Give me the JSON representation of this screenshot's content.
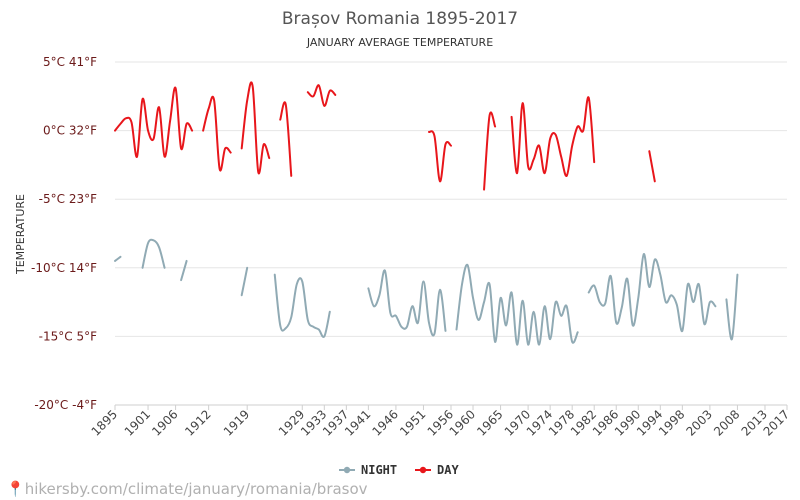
{
  "chart_data": {
    "type": "line",
    "title": "Brașov Romania 1895-2017",
    "subtitle": "JANUARY AVERAGE TEMPERATURE",
    "ylabel": "TEMPERATURE",
    "ylim": [
      -20,
      5
    ],
    "yticks": [
      {
        "value": 5,
        "label": "5°C 41°F"
      },
      {
        "value": 0,
        "label": "0°C 32°F"
      },
      {
        "value": -5,
        "label": "-5°C 23°F"
      },
      {
        "value": -10,
        "label": "-10°C 14°F"
      },
      {
        "value": -15,
        "label": "-15°C 5°F"
      },
      {
        "value": -20,
        "label": "-20°C -4°F"
      }
    ],
    "xlim": [
      1895,
      2017
    ],
    "xticks": [
      1895,
      1901,
      1906,
      1912,
      1919,
      1929,
      1933,
      1937,
      1941,
      1946,
      1951,
      1956,
      1960,
      1965,
      1970,
      1974,
      1978,
      1982,
      1986,
      1990,
      1994,
      1998,
      2003,
      2008,
      2013,
      2017
    ],
    "grid": true,
    "legend_position": "bottom",
    "series": [
      {
        "name": "NIGHT",
        "color": "#90aab4",
        "segments": [
          [
            [
              1895,
              -9.5
            ],
            [
              1896,
              -9.2
            ]
          ],
          [
            [
              1900,
              -10.0
            ],
            [
              1901,
              -8.2
            ],
            [
              1902,
              -8.0
            ],
            [
              1903,
              -8.5
            ],
            [
              1904,
              -10.0
            ]
          ],
          [
            [
              1907,
              -10.9
            ],
            [
              1908,
              -9.5
            ]
          ],
          [
            [
              1918,
              -12.0
            ],
            [
              1919,
              -10.0
            ]
          ],
          [
            [
              1924,
              -10.5
            ],
            [
              1925,
              -14.2
            ],
            [
              1926,
              -14.4
            ],
            [
              1927,
              -13.6
            ],
            [
              1928,
              -11.2
            ],
            [
              1929,
              -11.0
            ],
            [
              1930,
              -13.8
            ],
            [
              1931,
              -14.3
            ],
            [
              1932,
              -14.5
            ],
            [
              1933,
              -15.0
            ],
            [
              1934,
              -13.2
            ]
          ],
          [
            [
              1941,
              -11.5
            ],
            [
              1942,
              -12.8
            ],
            [
              1943,
              -12.0
            ],
            [
              1944,
              -10.2
            ],
            [
              1945,
              -13.3
            ],
            [
              1946,
              -13.5
            ],
            [
              1947,
              -14.3
            ],
            [
              1948,
              -14.3
            ],
            [
              1949,
              -12.8
            ],
            [
              1950,
              -14.0
            ],
            [
              1951,
              -11.0
            ],
            [
              1952,
              -14.0
            ],
            [
              1953,
              -14.8
            ],
            [
              1954,
              -11.6
            ],
            [
              1955,
              -14.6
            ]
          ],
          [
            [
              1957,
              -14.5
            ],
            [
              1958,
              -11.2
            ],
            [
              1959,
              -9.8
            ],
            [
              1960,
              -12.2
            ],
            [
              1961,
              -13.8
            ],
            [
              1962,
              -12.5
            ],
            [
              1963,
              -11.2
            ],
            [
              1964,
              -15.4
            ],
            [
              1965,
              -12.2
            ],
            [
              1966,
              -14.2
            ],
            [
              1967,
              -11.8
            ],
            [
              1968,
              -15.6
            ],
            [
              1969,
              -12.4
            ],
            [
              1970,
              -15.6
            ],
            [
              1971,
              -13.2
            ],
            [
              1972,
              -15.6
            ],
            [
              1973,
              -12.8
            ],
            [
              1974,
              -15.2
            ],
            [
              1975,
              -12.5
            ],
            [
              1976,
              -13.5
            ],
            [
              1977,
              -12.8
            ],
            [
              1978,
              -15.4
            ],
            [
              1979,
              -14.7
            ]
          ],
          [
            [
              1981,
              -11.8
            ],
            [
              1982,
              -11.3
            ],
            [
              1983,
              -12.5
            ],
            [
              1984,
              -12.6
            ],
            [
              1985,
              -10.6
            ],
            [
              1986,
              -14.0
            ],
            [
              1987,
              -12.9
            ],
            [
              1988,
              -10.8
            ],
            [
              1989,
              -14.2
            ],
            [
              1990,
              -12.2
            ],
            [
              1991,
              -9.0
            ],
            [
              1992,
              -11.4
            ],
            [
              1993,
              -9.4
            ],
            [
              1994,
              -10.5
            ],
            [
              1995,
              -12.5
            ],
            [
              1996,
              -12.0
            ],
            [
              1997,
              -12.7
            ],
            [
              1998,
              -14.6
            ],
            [
              1999,
              -11.2
            ],
            [
              2000,
              -12.5
            ],
            [
              2001,
              -11.2
            ],
            [
              2002,
              -14.1
            ],
            [
              2003,
              -12.5
            ],
            [
              2004,
              -12.8
            ]
          ],
          [
            [
              2006,
              -12.3
            ],
            [
              2007,
              -15.2
            ],
            [
              2008,
              -10.5
            ]
          ]
        ]
      },
      {
        "name": "DAY",
        "color": "#e8161b",
        "segments": [
          [
            [
              1895,
              0.0
            ],
            [
              1896,
              0.5
            ],
            [
              1897,
              0.9
            ],
            [
              1898,
              0.6
            ],
            [
              1899,
              -1.9
            ],
            [
              1900,
              2.3
            ],
            [
              1901,
              0.0
            ],
            [
              1902,
              -0.6
            ],
            [
              1903,
              1.7
            ],
            [
              1904,
              -1.9
            ],
            [
              1905,
              0.7
            ],
            [
              1906,
              3.1
            ],
            [
              1907,
              -1.3
            ],
            [
              1908,
              0.5
            ],
            [
              1909,
              0.0
            ]
          ],
          [
            [
              1911,
              0.0
            ],
            [
              1912,
              1.6
            ],
            [
              1913,
              2.2
            ],
            [
              1914,
              -2.8
            ],
            [
              1915,
              -1.3
            ],
            [
              1916,
              -1.6
            ]
          ],
          [
            [
              1918,
              -1.3
            ],
            [
              1919,
              2.2
            ],
            [
              1920,
              3.2
            ],
            [
              1921,
              -3.0
            ],
            [
              1922,
              -1.0
            ],
            [
              1923,
              -2.0
            ]
          ],
          [
            [
              1925,
              0.8
            ],
            [
              1926,
              1.9
            ],
            [
              1927,
              -3.3
            ]
          ],
          [
            [
              1930,
              2.8
            ],
            [
              1931,
              2.5
            ],
            [
              1932,
              3.3
            ],
            [
              1933,
              1.8
            ],
            [
              1934,
              2.9
            ],
            [
              1935,
              2.6
            ]
          ],
          [
            [
              1952,
              -0.1
            ],
            [
              1953,
              -0.4
            ],
            [
              1954,
              -3.7
            ],
            [
              1955,
              -1.0
            ],
            [
              1956,
              -1.1
            ]
          ],
          [
            [
              1962,
              -4.3
            ],
            [
              1963,
              1.1
            ],
            [
              1964,
              0.3
            ]
          ],
          [
            [
              1967,
              1.0
            ],
            [
              1968,
              -3.1
            ],
            [
              1969,
              2.0
            ],
            [
              1970,
              -2.6
            ],
            [
              1971,
              -2.1
            ],
            [
              1972,
              -1.1
            ],
            [
              1973,
              -3.1
            ],
            [
              1974,
              -0.6
            ],
            [
              1975,
              -0.3
            ],
            [
              1976,
              -1.9
            ],
            [
              1977,
              -3.3
            ],
            [
              1978,
              -1.1
            ],
            [
              1979,
              0.3
            ],
            [
              1980,
              0.0
            ],
            [
              1981,
              2.4
            ],
            [
              1982,
              -2.3
            ]
          ],
          [
            [
              1992,
              -1.5
            ],
            [
              1993,
              -3.7
            ]
          ]
        ]
      }
    ]
  },
  "legend": {
    "items": [
      {
        "label": "NIGHT",
        "color": "#90aab4"
      },
      {
        "label": "DAY",
        "color": "#e8161b"
      }
    ]
  },
  "footer": {
    "url": "hikersby.com/climate/january/romania/brasov"
  }
}
